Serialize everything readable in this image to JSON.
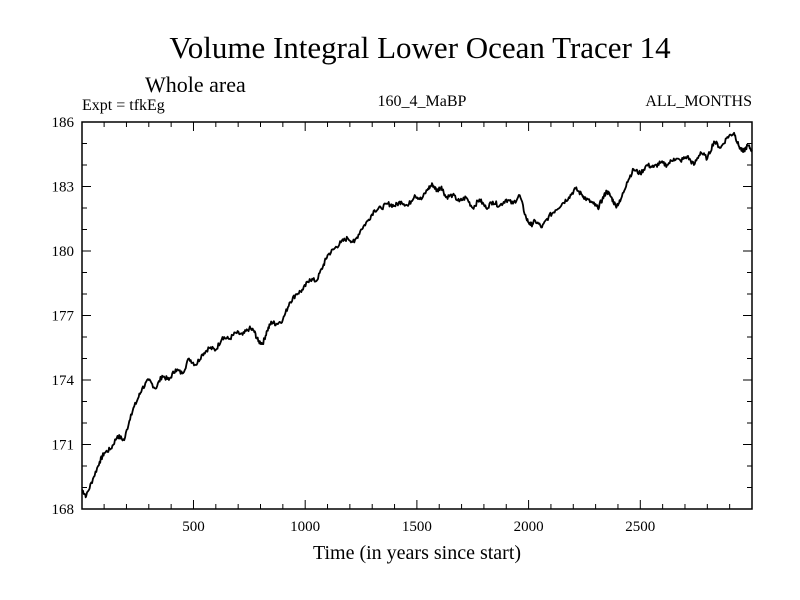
{
  "chart_data": {
    "type": "line",
    "title": "Volume Integral Lower Ocean Tracer 14",
    "subtitle": "Whole area",
    "expt_label": "Expt = tfkEg",
    "run_label": "160_4_MaBP",
    "months_label": "ALL_MONTHS",
    "xlabel": "Time (in years since start)",
    "ylabel": "",
    "xlim": [
      1,
      3000
    ],
    "ylim": [
      168,
      186
    ],
    "x_ticks": [
      500,
      1000,
      1500,
      2000,
      2500
    ],
    "y_ticks": [
      168,
      171,
      174,
      177,
      180,
      183,
      186
    ],
    "grid": false,
    "series": [
      {
        "color": "#000000",
        "x": [
          1,
          20,
          50,
          80,
          100,
          130,
          160,
          190,
          220,
          250,
          270,
          300,
          330,
          360,
          390,
          420,
          450,
          480,
          510,
          540,
          570,
          600,
          630,
          660,
          690,
          720,
          750,
          770,
          790,
          810,
          830,
          850,
          870,
          900,
          930,
          960,
          990,
          1020,
          1050,
          1080,
          1100,
          1130,
          1160,
          1190,
          1220,
          1250,
          1280,
          1310,
          1340,
          1370,
          1400,
          1430,
          1460,
          1490,
          1520,
          1550,
          1570,
          1590,
          1610,
          1630,
          1660,
          1690,
          1720,
          1750,
          1780,
          1810,
          1840,
          1870,
          1900,
          1930,
          1960,
          1990,
          2010,
          2030,
          2060,
          2090,
          2120,
          2150,
          2180,
          2210,
          2240,
          2260,
          2290,
          2310,
          2330,
          2350,
          2370,
          2390,
          2410,
          2440,
          2470,
          2500,
          2530,
          2560,
          2590,
          2620,
          2650,
          2680,
          2710,
          2740,
          2770,
          2800,
          2830,
          2860,
          2890,
          2920,
          2940,
          2960,
          2980,
          3000
        ],
        "y": [
          168.9,
          168.6,
          169.4,
          170.2,
          170.6,
          170.8,
          171.4,
          171.2,
          172.4,
          173.1,
          173.6,
          174.0,
          173.6,
          174.2,
          174.0,
          174.5,
          174.3,
          175.0,
          174.7,
          175.2,
          175.5,
          175.4,
          176.0,
          175.9,
          176.2,
          176.1,
          176.4,
          176.3,
          175.8,
          175.7,
          176.3,
          176.7,
          176.6,
          176.8,
          177.6,
          178.0,
          178.2,
          178.7,
          178.6,
          179.3,
          179.8,
          180.1,
          180.4,
          180.6,
          180.4,
          181.0,
          181.4,
          181.9,
          182.0,
          182.2,
          182.1,
          182.3,
          182.1,
          182.6,
          182.4,
          182.9,
          183.1,
          182.8,
          183.0,
          182.5,
          182.6,
          182.3,
          182.5,
          182.0,
          182.4,
          182.0,
          182.3,
          182.1,
          182.4,
          182.2,
          182.6,
          181.5,
          181.2,
          181.4,
          181.1,
          181.6,
          181.9,
          182.2,
          182.5,
          182.9,
          182.6,
          182.4,
          182.2,
          182.0,
          182.4,
          182.8,
          182.5,
          182.1,
          182.3,
          183.2,
          183.8,
          183.6,
          184.0,
          183.9,
          184.1,
          184.0,
          184.3,
          184.2,
          184.4,
          184.0,
          184.6,
          184.3,
          185.1,
          184.8,
          185.3,
          185.5,
          184.9,
          184.6,
          184.9,
          184.7
        ]
      }
    ]
  }
}
